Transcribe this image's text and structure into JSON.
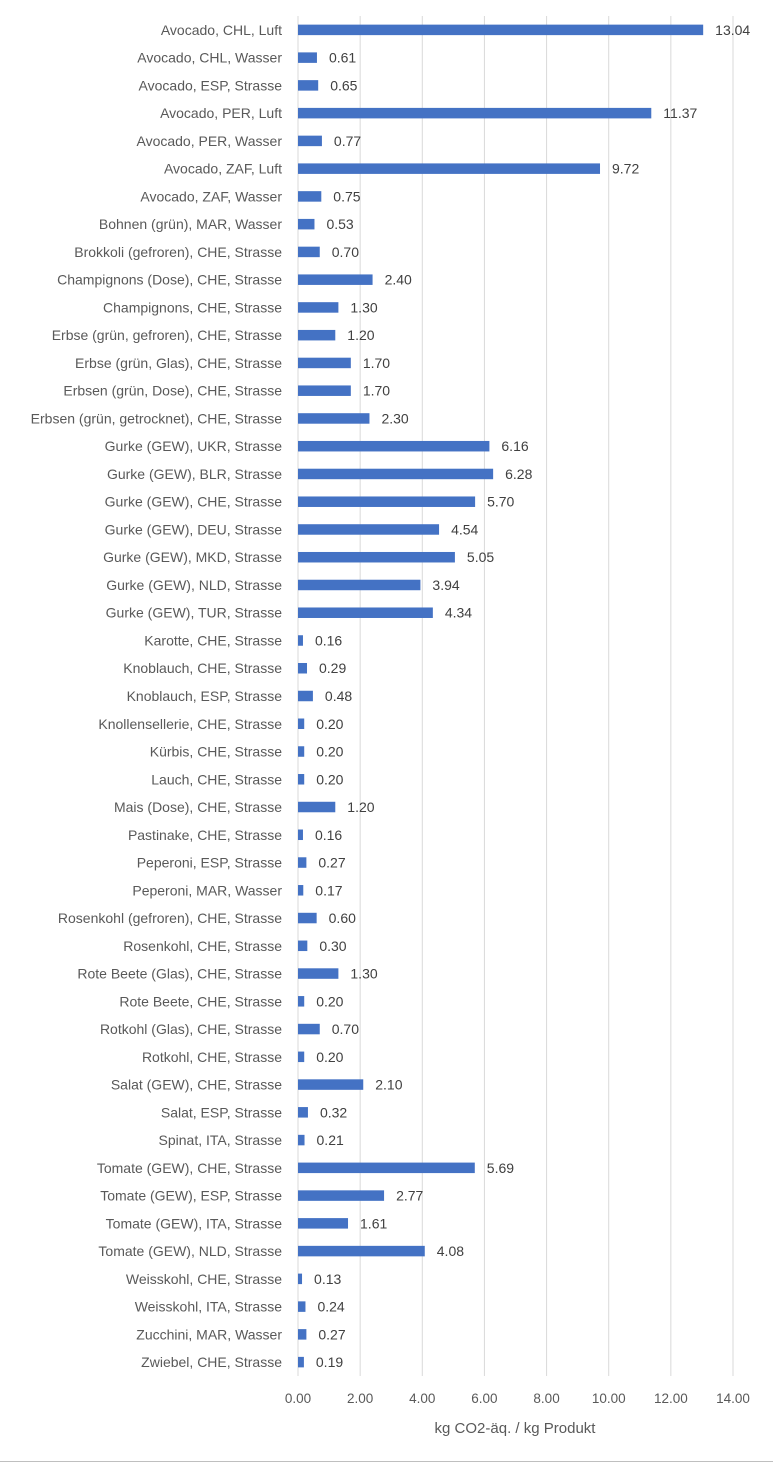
{
  "chart_data": {
    "type": "bar",
    "orientation": "horizontal",
    "xlabel": "kg CO2-äq. / kg Produkt",
    "ylabel": "",
    "xlim": [
      0,
      14
    ],
    "xticks": [
      "0.00",
      "2.00",
      "4.00",
      "6.00",
      "8.00",
      "10.00",
      "12.00",
      "14.00"
    ],
    "grid": "vertical",
    "bar_color": "#4472C4",
    "categories": [
      "Avocado, CHL, Luft",
      "Avocado, CHL, Wasser",
      "Avocado, ESP, Strasse",
      "Avocado, PER, Luft",
      "Avocado, PER, Wasser",
      "Avocado, ZAF, Luft",
      "Avocado, ZAF, Wasser",
      "Bohnen (grün), MAR, Wasser",
      "Brokkoli (gefroren), CHE, Strasse",
      "Champignons (Dose), CHE, Strasse",
      "Champignons, CHE, Strasse",
      "Erbse (grün, gefroren), CHE, Strasse",
      "Erbse (grün, Glas), CHE, Strasse",
      "Erbsen (grün, Dose), CHE, Strasse",
      "Erbsen (grün, getrocknet), CHE, Strasse",
      "Gurke  (GEW), UKR, Strasse",
      "Gurke (GEW), BLR, Strasse",
      "Gurke (GEW), CHE, Strasse",
      "Gurke (GEW), DEU, Strasse",
      "Gurke (GEW), MKD, Strasse",
      "Gurke (GEW), NLD, Strasse",
      "Gurke (GEW), TUR, Strasse",
      "Karotte, CHE, Strasse",
      "Knoblauch, CHE, Strasse",
      "Knoblauch, ESP, Strasse",
      "Knollensellerie, CHE, Strasse",
      "Kürbis, CHE, Strasse",
      "Lauch, CHE, Strasse",
      "Mais (Dose), CHE, Strasse",
      "Pastinake, CHE, Strasse",
      "Peperoni, ESP, Strasse",
      "Peperoni, MAR, Wasser",
      "Rosenkohl (gefroren), CHE, Strasse",
      "Rosenkohl, CHE, Strasse",
      "Rote Beete (Glas), CHE, Strasse",
      "Rote Beete, CHE, Strasse",
      "Rotkohl (Glas), CHE, Strasse",
      "Rotkohl, CHE, Strasse",
      "Salat (GEW), CHE, Strasse",
      "Salat, ESP, Strasse",
      "Spinat, ITA, Strasse",
      "Tomate (GEW), CHE, Strasse",
      "Tomate (GEW), ESP, Strasse",
      "Tomate (GEW), ITA, Strasse",
      "Tomate (GEW), NLD, Strasse",
      "Weisskohl, CHE, Strasse",
      "Weisskohl, ITA, Strasse",
      "Zucchini, MAR, Wasser",
      "Zwiebel, CHE, Strasse"
    ],
    "values": [
      13.04,
      0.61,
      0.65,
      11.37,
      0.77,
      9.72,
      0.75,
      0.53,
      0.7,
      2.4,
      1.3,
      1.2,
      1.7,
      1.7,
      2.3,
      6.16,
      6.28,
      5.7,
      4.54,
      5.05,
      3.94,
      4.34,
      0.16,
      0.29,
      0.48,
      0.2,
      0.2,
      0.2,
      1.2,
      0.16,
      0.27,
      0.17,
      0.6,
      0.3,
      1.3,
      0.2,
      0.7,
      0.2,
      2.1,
      0.32,
      0.21,
      5.69,
      2.77,
      1.61,
      4.08,
      0.13,
      0.24,
      0.27,
      0.19
    ],
    "value_labels": [
      "13.04",
      "0.61",
      "0.65",
      "11.37",
      "0.77",
      "9.72",
      "0.75",
      "0.53",
      "0.70",
      "2.40",
      "1.30",
      "1.20",
      "1.70",
      "1.70",
      "2.30",
      "6.16",
      "6.28",
      "5.70",
      "4.54",
      "5.05",
      "3.94",
      "4.34",
      "0.16",
      "0.29",
      "0.48",
      "0.20",
      "0.20",
      "0.20",
      "1.20",
      "0.16",
      "0.27",
      "0.17",
      "0.60",
      "0.30",
      "1.30",
      "0.20",
      "0.70",
      "0.20",
      "2.10",
      "0.32",
      "0.21",
      "5.69",
      "2.77",
      "1.61",
      "4.08",
      "0.13",
      "0.24",
      "0.27",
      "0.19"
    ]
  }
}
